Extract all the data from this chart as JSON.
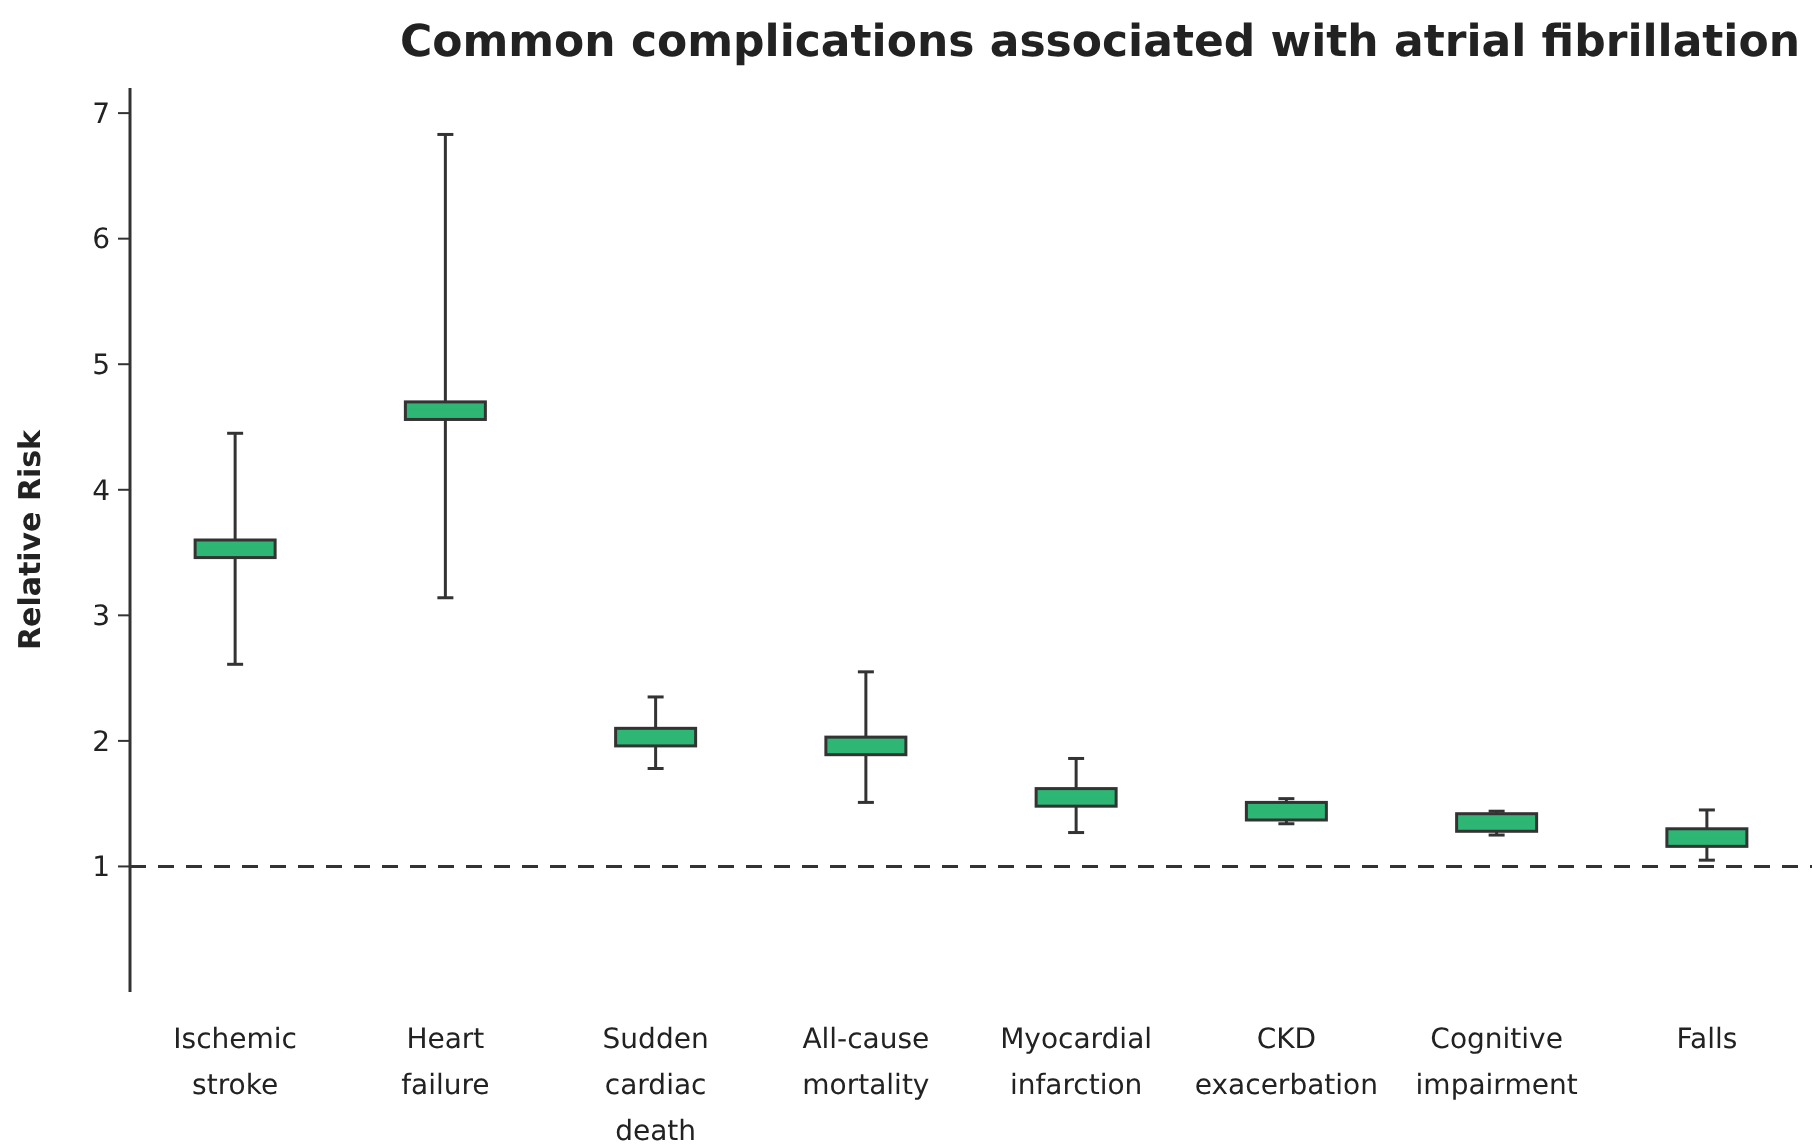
{
  "chart_data": {
    "type": "box",
    "title": "Common complications associated with atrial fibrillation",
    "ylabel": "Relative Risk",
    "categories": [
      "Ischemic stroke",
      "Heart failure",
      "Sudden cardiac death",
      "All-cause mortality",
      "Myocardial infarction",
      "CKD exacerbation",
      "Cognitive impairment",
      "Falls"
    ],
    "series": [
      {
        "color": "#2db674",
        "boxes": [
          {
            "low": 2.61,
            "q1": 3.46,
            "median": 3.53,
            "q3": 3.6,
            "high": 4.45
          },
          {
            "low": 3.14,
            "q1": 4.56,
            "median": 4.63,
            "q3": 4.7,
            "high": 6.83
          },
          {
            "low": 1.78,
            "q1": 1.96,
            "median": 2.03,
            "q3": 2.1,
            "high": 2.35
          },
          {
            "low": 1.51,
            "q1": 1.89,
            "median": 1.96,
            "q3": 2.03,
            "high": 2.55
          },
          {
            "low": 1.27,
            "q1": 1.48,
            "median": 1.55,
            "q3": 1.62,
            "high": 1.86
          },
          {
            "low": 1.34,
            "q1": 1.37,
            "median": 1.44,
            "q3": 1.51,
            "high": 1.54
          },
          {
            "low": 1.25,
            "q1": 1.28,
            "median": 1.35,
            "q3": 1.42,
            "high": 1.44
          },
          {
            "low": 1.05,
            "q1": 1.16,
            "median": 1.23,
            "q3": 1.3,
            "high": 1.45
          }
        ]
      }
    ],
    "ylim": [
      0,
      7.2
    ],
    "yticks": [
      1,
      2,
      3,
      4,
      5,
      6,
      7
    ],
    "grid": false,
    "ref_lines": [
      {
        "axis": "y",
        "value": 1,
        "line_style": "dashed",
        "color": "#333333"
      }
    ]
  }
}
